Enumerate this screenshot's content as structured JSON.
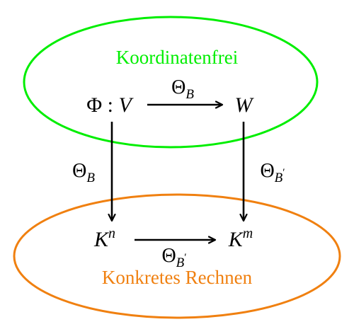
{
  "top_region": {
    "label": "Koordinatenfrei",
    "color": "#00ee00"
  },
  "bottom_region": {
    "label": "Konkretes Rechnen",
    "color": "#f08010"
  },
  "nodes": {
    "top_left": {
      "sym": "Φ",
      "sep": " : ",
      "var": "V"
    },
    "top_right": {
      "var": "W"
    },
    "bottom_left": {
      "base": "K",
      "exp": "n"
    },
    "bottom_right": {
      "base": "K",
      "exp": "m"
    }
  },
  "arrows": {
    "top": {
      "base": "Θ",
      "sub": "B",
      "prime": ""
    },
    "left": {
      "base": "Θ",
      "sub": "B",
      "prime": ""
    },
    "right": {
      "base": "Θ",
      "sub": "B",
      "prime": "′"
    },
    "bottom": {
      "base": "Θ",
      "sub": "B",
      "prime": "′"
    }
  },
  "arrow_color": "#000000"
}
